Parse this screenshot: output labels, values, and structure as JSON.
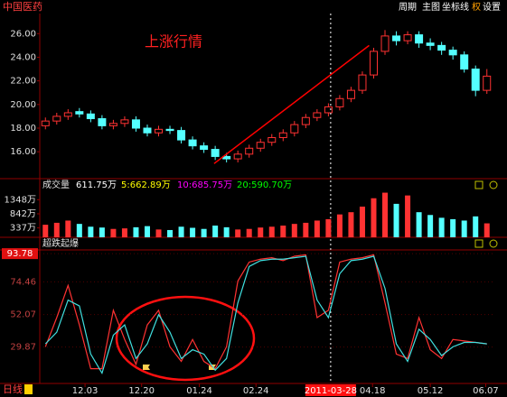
{
  "header": {
    "title": "中国医药",
    "menu": [
      "周期",
      "主图",
      "坐标线",
      "权",
      "设置"
    ],
    "period": "日线"
  },
  "chart_data": [
    {
      "type": "candlestick",
      "annotation": "上涨行情",
      "open": [
        18.2,
        18.6,
        19.0,
        19.4,
        19.2,
        18.8,
        18.2,
        18.4,
        18.7,
        18.0,
        17.6,
        17.9,
        17.8,
        17.0,
        16.5,
        16.2,
        15.6,
        15.4,
        15.8,
        16.3,
        16.8,
        17.2,
        17.6,
        18.3,
        18.9,
        19.3,
        19.8,
        20.5,
        21.2,
        22.5,
        24.5,
        25.8,
        25.4,
        25.9,
        25.2,
        25.0,
        24.6,
        24.2,
        23.0,
        21.2
      ],
      "high": [
        18.9,
        19.3,
        19.6,
        19.7,
        19.5,
        19.1,
        18.7,
        19.0,
        19.0,
        18.3,
        18.2,
        18.2,
        18.1,
        17.3,
        16.8,
        16.5,
        15.9,
        16.1,
        16.6,
        17.1,
        17.5,
        17.9,
        18.6,
        19.2,
        19.6,
        20.1,
        20.8,
        21.5,
        22.8,
        24.8,
        26.3,
        26.2,
        26.2,
        26.2,
        25.6,
        25.3,
        24.9,
        24.5,
        23.3,
        23.0
      ],
      "low": [
        17.9,
        18.3,
        18.7,
        18.9,
        18.5,
        17.9,
        17.9,
        18.1,
        17.7,
        17.3,
        17.3,
        17.5,
        16.7,
        16.2,
        15.9,
        15.3,
        15.1,
        15.1,
        15.5,
        16.0,
        16.5,
        16.9,
        17.3,
        18.0,
        18.6,
        19.0,
        19.5,
        20.2,
        20.9,
        22.2,
        24.2,
        25.0,
        25.1,
        24.8,
        24.6,
        24.2,
        23.8,
        22.7,
        20.7,
        20.9
      ],
      "close": [
        18.6,
        19.0,
        19.3,
        19.2,
        18.8,
        18.2,
        18.4,
        18.7,
        18.0,
        17.6,
        17.9,
        17.8,
        17.0,
        16.5,
        16.2,
        15.6,
        15.4,
        15.8,
        16.3,
        16.8,
        17.2,
        17.6,
        18.3,
        18.9,
        19.3,
        19.8,
        20.5,
        21.2,
        22.5,
        24.5,
        25.8,
        25.4,
        25.9,
        25.2,
        25.0,
        24.6,
        24.2,
        23.0,
        21.2,
        22.4
      ],
      "up_color": "#ff3232",
      "down_color": "#54ffff",
      "ylim": [
        13.8,
        27.7
      ],
      "yticks": [
        {
          "value": 16,
          "label": "16.00"
        },
        {
          "value": 18,
          "label": "18.00"
        },
        {
          "value": 20,
          "label": "20.00"
        },
        {
          "value": 22,
          "label": "22.00"
        },
        {
          "value": 24,
          "label": "24.00"
        },
        {
          "value": 26,
          "label": "26.00"
        }
      ],
      "xlim": [
        -0.5,
        39.5
      ],
      "xticks": [
        {
          "value": 3.5,
          "label": "12.03"
        },
        {
          "value": 8.5,
          "label": "12.20"
        },
        {
          "value": 13.6,
          "label": "01.24"
        },
        {
          "value": 18.6,
          "label": "02.24"
        },
        {
          "value": 28.9,
          "label": "04.18"
        },
        {
          "value": 34,
          "label": "05.12"
        },
        {
          "value": 38.9,
          "label": "06.07"
        }
      ],
      "crosshair": {
        "x": 25.2,
        "label": "2011-03-28"
      },
      "trendline": {
        "x": [
          14.9,
          28.6
        ],
        "y": [
          15.0,
          25.0
        ],
        "color": "#ff0000"
      }
    },
    {
      "type": "bar",
      "title": "成交量",
      "legend": [
        "611.75万",
        "5:662.89万",
        "10:685.75万",
        "20:590.70万"
      ],
      "legend_colors": [
        "#ffffff",
        "#ffff00",
        "#ff00ff",
        "#00ff00"
      ],
      "values": [
        450,
        520,
        600,
        480,
        380,
        350,
        300,
        320,
        360,
        400,
        280,
        260,
        380,
        340,
        300,
        420,
        360,
        280,
        300,
        350,
        380,
        420,
        480,
        520,
        600,
        650,
        820,
        900,
        1100,
        1400,
        1600,
        1200,
        1500,
        900,
        800,
        700,
        650,
        600,
        750,
        500
      ],
      "ylim": [
        0,
        1650
      ],
      "yticks": [
        {
          "value": 337,
          "label": "337万"
        },
        {
          "value": 842,
          "label": "842万"
        },
        {
          "value": 1348,
          "label": "1348万"
        }
      ]
    },
    {
      "type": "line",
      "title": "超跌起爆",
      "grid": true,
      "series": [
        {
          "color": "#ff3232",
          "values": [
            30,
            50,
            72,
            45,
            15,
            15,
            55,
            35,
            18,
            45,
            55,
            30,
            20,
            35,
            20,
            15,
            30,
            75,
            88,
            90,
            91,
            89,
            92,
            93,
            50,
            55,
            88,
            90,
            91,
            93,
            60,
            25,
            22,
            50,
            28,
            22,
            35,
            34,
            33,
            32
          ]
        },
        {
          "color": "#40e0e0",
          "values": [
            32,
            40,
            62,
            58,
            25,
            12,
            38,
            45,
            22,
            32,
            52,
            40,
            22,
            28,
            25,
            14,
            22,
            60,
            85,
            89,
            90,
            90,
            91,
            92,
            62,
            50,
            80,
            89,
            90,
            92,
            70,
            32,
            20,
            42,
            35,
            24,
            30,
            33,
            33,
            32
          ]
        }
      ],
      "ylim": [
        4.9,
        95.7
      ],
      "yticks": [
        29.87,
        52.07,
        74.46,
        93.78
      ]
    }
  ]
}
